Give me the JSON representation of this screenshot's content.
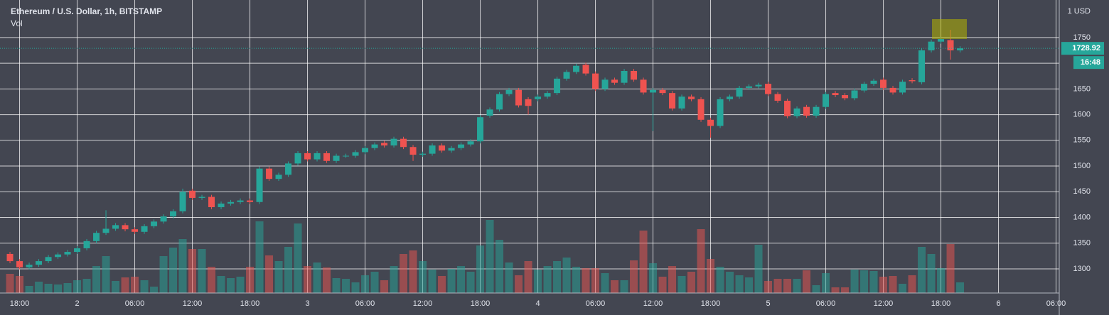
{
  "chart_data": {
    "type": "candlestick",
    "title": "Ethereum / U.S. Dollar, 1h, BITSTAMP",
    "volume_label": "Vol",
    "currency_label": "1 USD",
    "up_color": "#26a69a",
    "down_color": "#ef5350",
    "grid": true,
    "ylim": [
      1253,
      1823
    ],
    "yticks": [
      1300,
      1350,
      1400,
      1450,
      1500,
      1550,
      1600,
      1650,
      1700,
      1750
    ],
    "xlim": [
      -1.04,
      109.33
    ],
    "xticks": [
      {
        "value": 1,
        "label": "18:00"
      },
      {
        "value": 7,
        "label": "2"
      },
      {
        "value": 13,
        "label": "06:00"
      },
      {
        "value": 19,
        "label": "12:00"
      },
      {
        "value": 25,
        "label": "18:00"
      },
      {
        "value": 31,
        "label": "3"
      },
      {
        "value": 37,
        "label": "06:00"
      },
      {
        "value": 43,
        "label": "12:00"
      },
      {
        "value": 49,
        "label": "18:00"
      },
      {
        "value": 55,
        "label": "4"
      },
      {
        "value": 61,
        "label": "06:00"
      },
      {
        "value": 67,
        "label": "12:00"
      },
      {
        "value": 73,
        "label": "18:00"
      },
      {
        "value": 79,
        "label": "5"
      },
      {
        "value": 85,
        "label": "06:00"
      },
      {
        "value": 91,
        "label": "12:00"
      },
      {
        "value": 97,
        "label": "18:00"
      },
      {
        "value": 103,
        "label": "6"
      },
      {
        "value": 109,
        "label": "06:00"
      }
    ],
    "last_price": 1728.92,
    "countdown": "16:48",
    "open": [
      1329,
      1315,
      1303,
      1308,
      1315,
      1323,
      1328,
      1333,
      1340,
      1354,
      1370,
      1378,
      1385,
      1377,
      1372,
      1383,
      1392,
      1402,
      1412,
      1452,
      1438,
      1440,
      1420,
      1427,
      1430,
      1433,
      1430,
      1495,
      1475,
      1483,
      1505,
      1525,
      1513,
      1525,
      1510,
      1520,
      1520,
      1527,
      1535,
      1545,
      1540,
      1553,
      1537,
      1522,
      1524,
      1540,
      1530,
      1535,
      1542,
      1548,
      1598,
      1610,
      1640,
      1648,
      1630,
      1630,
      1635,
      1642,
      1670,
      1683,
      1697,
      1680,
      1650,
      1668,
      1662,
      1685,
      1668,
      1643,
      1648,
      1642,
      1612,
      1635,
      1630,
      1590,
      1578,
      1630,
      1635,
      1652,
      1655,
      1660,
      1640,
      1627,
      1597,
      1615,
      1598,
      1615,
      1642,
      1638,
      1632,
      1647,
      1660,
      1668,
      1652,
      1643,
      1667,
      1663,
      1725,
      1742,
      1745,
      1725
    ],
    "high": [
      1333,
      1319,
      1312,
      1319,
      1327,
      1332,
      1337,
      1344,
      1358,
      1374,
      1414,
      1389,
      1389,
      1381,
      1387,
      1396,
      1406,
      1416,
      1456,
      1456,
      1444,
      1444,
      1431,
      1434,
      1437,
      1437,
      1499,
      1499,
      1487,
      1509,
      1529,
      1529,
      1529,
      1529,
      1524,
      1524,
      1531,
      1539,
      1546,
      1549,
      1557,
      1557,
      1541,
      1528,
      1544,
      1544,
      1539,
      1546,
      1552,
      1599,
      1614,
      1644,
      1652,
      1652,
      1634,
      1639,
      1646,
      1674,
      1687,
      1699,
      1701,
      1684,
      1672,
      1672,
      1689,
      1689,
      1672,
      1652,
      1652,
      1646,
      1639,
      1639,
      1634,
      1594,
      1634,
      1639,
      1656,
      1659,
      1662,
      1664,
      1644,
      1631,
      1616,
      1619,
      1619,
      1644,
      1646,
      1642,
      1651,
      1664,
      1670,
      1672,
      1656,
      1668,
      1671,
      1729,
      1746,
      1751,
      1765,
      1733
    ],
    "low": [
      1311,
      1299,
      1299,
      1304,
      1311,
      1319,
      1324,
      1329,
      1336,
      1350,
      1366,
      1374,
      1373,
      1368,
      1368,
      1379,
      1388,
      1398,
      1408,
      1434,
      1434,
      1416,
      1416,
      1423,
      1426,
      1426,
      1426,
      1471,
      1471,
      1479,
      1501,
      1509,
      1509,
      1506,
      1506,
      1516,
      1516,
      1523,
      1531,
      1536,
      1536,
      1533,
      1510,
      1518,
      1520,
      1526,
      1526,
      1531,
      1538,
      1544,
      1594,
      1606,
      1636,
      1614,
      1600,
      1626,
      1631,
      1638,
      1666,
      1679,
      1676,
      1646,
      1646,
      1658,
      1658,
      1664,
      1639,
      1568,
      1638,
      1608,
      1608,
      1626,
      1586,
      1555,
      1574,
      1626,
      1631,
      1648,
      1651,
      1636,
      1623,
      1593,
      1593,
      1594,
      1594,
      1611,
      1634,
      1628,
      1628,
      1643,
      1656,
      1648,
      1639,
      1639,
      1661,
      1659,
      1721,
      1738,
      1707,
      1721
    ],
    "close": [
      1315,
      1303,
      1308,
      1315,
      1323,
      1328,
      1333,
      1340,
      1354,
      1370,
      1378,
      1385,
      1377,
      1372,
      1383,
      1392,
      1402,
      1412,
      1450,
      1438,
      1440,
      1420,
      1427,
      1430,
      1433,
      1430,
      1495,
      1475,
      1483,
      1505,
      1525,
      1513,
      1525,
      1510,
      1520,
      1520,
      1527,
      1535,
      1542,
      1540,
      1553,
      1537,
      1522,
      1524,
      1540,
      1530,
      1535,
      1542,
      1548,
      1595,
      1610,
      1640,
      1648,
      1618,
      1617,
      1635,
      1642,
      1670,
      1683,
      1695,
      1680,
      1650,
      1668,
      1662,
      1685,
      1668,
      1643,
      1648,
      1642,
      1612,
      1635,
      1630,
      1590,
      1578,
      1630,
      1635,
      1652,
      1655,
      1658,
      1640,
      1627,
      1597,
      1612,
      1598,
      1615,
      1640,
      1638,
      1632,
      1647,
      1660,
      1666,
      1652,
      1643,
      1664,
      1665,
      1725,
      1742,
      1747,
      1725,
      1729
    ],
    "volume": [
      27,
      24,
      10,
      16,
      13,
      12,
      14,
      18,
      20,
      38,
      52,
      17,
      22,
      23,
      18,
      9,
      52,
      64,
      76,
      62,
      62,
      37,
      24,
      21,
      23,
      37,
      101,
      53,
      45,
      65,
      98,
      38,
      43,
      36,
      21,
      20,
      15,
      25,
      30,
      18,
      38,
      55,
      60,
      45,
      33,
      24,
      34,
      38,
      30,
      67,
      103,
      75,
      43,
      25,
      45,
      33,
      38,
      45,
      50,
      37,
      35,
      35,
      28,
      18,
      18,
      46,
      88,
      42,
      23,
      38,
      24,
      30,
      90,
      48,
      37,
      30,
      25,
      22,
      68,
      17,
      20,
      20,
      20,
      32,
      11,
      28,
      8,
      8,
      33,
      32,
      31,
      23,
      24,
      13,
      25,
      65,
      55,
      35,
      69,
      15
    ],
    "volume_lim": [
      0,
      413
    ]
  }
}
